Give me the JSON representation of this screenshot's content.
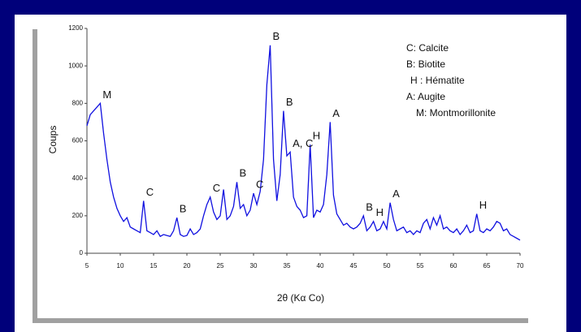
{
  "chart_data": {
    "type": "line",
    "xlabel": "2θ (Kα Co)",
    "ylabel": "Coups",
    "x": [
      5,
      5.5,
      6,
      6.5,
      7,
      7.5,
      8,
      8.5,
      9,
      9.5,
      10,
      10.5,
      11,
      11.5,
      12,
      12.5,
      13,
      13.5,
      14,
      14.5,
      15,
      15.5,
      16,
      16.5,
      17,
      17.5,
      18,
      18.5,
      19,
      19.5,
      20,
      20.5,
      21,
      21.5,
      22,
      22.5,
      23,
      23.5,
      24,
      24.5,
      25,
      25.5,
      26,
      26.5,
      27,
      27.5,
      28,
      28.5,
      29,
      29.5,
      30,
      30.5,
      31,
      31.5,
      32,
      32.5,
      33,
      33.5,
      34,
      34.5,
      35,
      35.5,
      36,
      36.5,
      37,
      37.5,
      38,
      38.5,
      39,
      39.5,
      40,
      40.5,
      41,
      41.5,
      42,
      42.5,
      43,
      43.5,
      44,
      44.5,
      45,
      45.5,
      46,
      46.5,
      47,
      47.5,
      48,
      48.5,
      49,
      49.5,
      50,
      50.5,
      51,
      51.5,
      52,
      52.5,
      53,
      53.5,
      54,
      54.5,
      55,
      55.5,
      56,
      56.5,
      57,
      57.5,
      58,
      58.5,
      59,
      59.5,
      60,
      60.5,
      61,
      61.5,
      62,
      62.5,
      63,
      63.5,
      64,
      64.5,
      65,
      65.5,
      66,
      66.5,
      67,
      67.5,
      68,
      68.5,
      69,
      69.5,
      70
    ],
    "series": [
      {
        "color": "#1010e0",
        "values": [
          680,
          740,
          760,
          780,
          800,
          640,
          500,
          380,
          300,
          240,
          200,
          170,
          190,
          140,
          130,
          120,
          110,
          280,
          120,
          110,
          100,
          120,
          90,
          100,
          95,
          90,
          120,
          190,
          100,
          90,
          95,
          130,
          100,
          110,
          130,
          200,
          260,
          300,
          220,
          180,
          200,
          340,
          180,
          200,
          250,
          380,
          240,
          260,
          200,
          230,
          320,
          260,
          330,
          500,
          900,
          1110,
          500,
          280,
          420,
          760,
          520,
          540,
          300,
          250,
          230,
          190,
          200,
          580,
          190,
          230,
          220,
          260,
          420,
          700,
          310,
          210,
          180,
          150,
          160,
          140,
          130,
          140,
          160,
          200,
          120,
          140,
          170,
          120,
          130,
          170,
          130,
          270,
          180,
          120,
          130,
          140,
          110,
          120,
          100,
          120,
          110,
          160,
          180,
          130,
          190,
          150,
          200,
          130,
          140,
          120,
          110,
          130,
          100,
          120,
          150,
          110,
          120,
          210,
          120,
          110,
          130,
          120,
          140,
          170,
          160,
          120,
          130,
          100,
          90,
          80,
          70
        ]
      }
    ],
    "xlim": [
      5,
      70
    ],
    "xticks": [
      5,
      10,
      15,
      20,
      25,
      30,
      35,
      40,
      45,
      50,
      55,
      60,
      65,
      70
    ],
    "ylim": [
      0,
      1200
    ],
    "yticks": [
      0,
      200,
      400,
      600,
      800,
      1000,
      1200
    ],
    "annotations": [
      {
        "text": "M",
        "x": 7
      },
      {
        "text": "C",
        "x": 13.5
      },
      {
        "text": "B",
        "x": 18.5
      },
      {
        "text": "C",
        "x": 23.5
      },
      {
        "text": "B",
        "x": 27.5
      },
      {
        "text": "C",
        "x": 30
      },
      {
        "text": "B",
        "x": 32.5
      },
      {
        "text": "B",
        "x": 34.5
      },
      {
        "text": "A, C",
        "x": 35.5
      },
      {
        "text": "H",
        "x": 38.5
      },
      {
        "text": "A",
        "x": 41.5
      },
      {
        "text": "B",
        "x": 46.5
      },
      {
        "text": "H",
        "x": 48
      },
      {
        "text": "A",
        "x": 50.5
      },
      {
        "text": "H",
        "x": 63.5
      }
    ],
    "legend_text": [
      "C: Calcite",
      "B: Biotite",
      "H : Hématite",
      "A: Augite",
      "M: Montmorillonite"
    ]
  }
}
